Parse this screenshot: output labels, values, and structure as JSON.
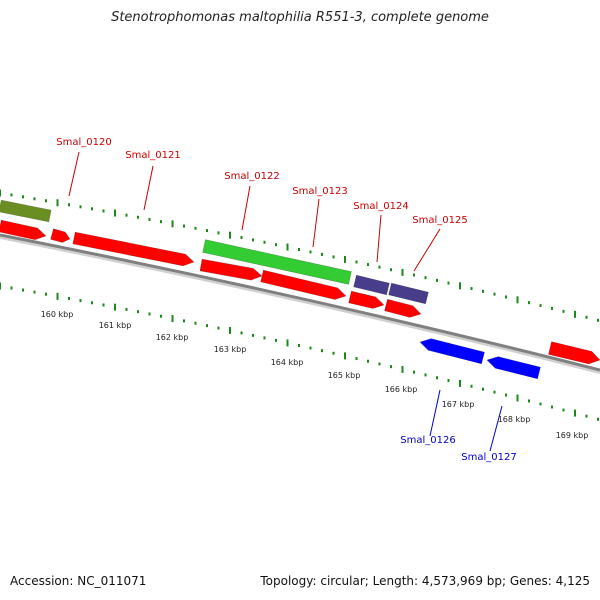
{
  "title": "Stenotrophomonas maltophilia R551-3, complete genome",
  "footer": {
    "accession": "Accession: NC_011071",
    "topology": "Topology: circular; Length: 4,573,969 bp; Genes: 4,125"
  },
  "colors": {
    "forward_cds": "#ff0000",
    "reverse_cds": "#0000ff",
    "green_feature": "#33cc33",
    "olive_feature": "#6b8e23",
    "slate_feature": "#483d8b",
    "backbone": "#808080",
    "tick": "#1a8a1a",
    "forward_label": "#cc0000",
    "reverse_label": "#0000cc"
  },
  "scale": {
    "unit": "kbp",
    "ticks": [
      "160 kbp",
      "161 kbp",
      "162 kbp",
      "163 kbp",
      "164 kbp",
      "165 kbp",
      "166 kbp",
      "167 kbp",
      "168 kbp",
      "169 kbp"
    ]
  },
  "genes": [
    {
      "name": "Smal_0120",
      "strand": "forward"
    },
    {
      "name": "Smal_0121",
      "strand": "forward"
    },
    {
      "name": "Smal_0122",
      "strand": "forward"
    },
    {
      "name": "Smal_0123",
      "strand": "forward"
    },
    {
      "name": "Smal_0124",
      "strand": "forward"
    },
    {
      "name": "Smal_0125",
      "strand": "forward"
    },
    {
      "name": "Smal_0126",
      "strand": "reverse"
    },
    {
      "name": "Smal_0127",
      "strand": "reverse"
    }
  ]
}
